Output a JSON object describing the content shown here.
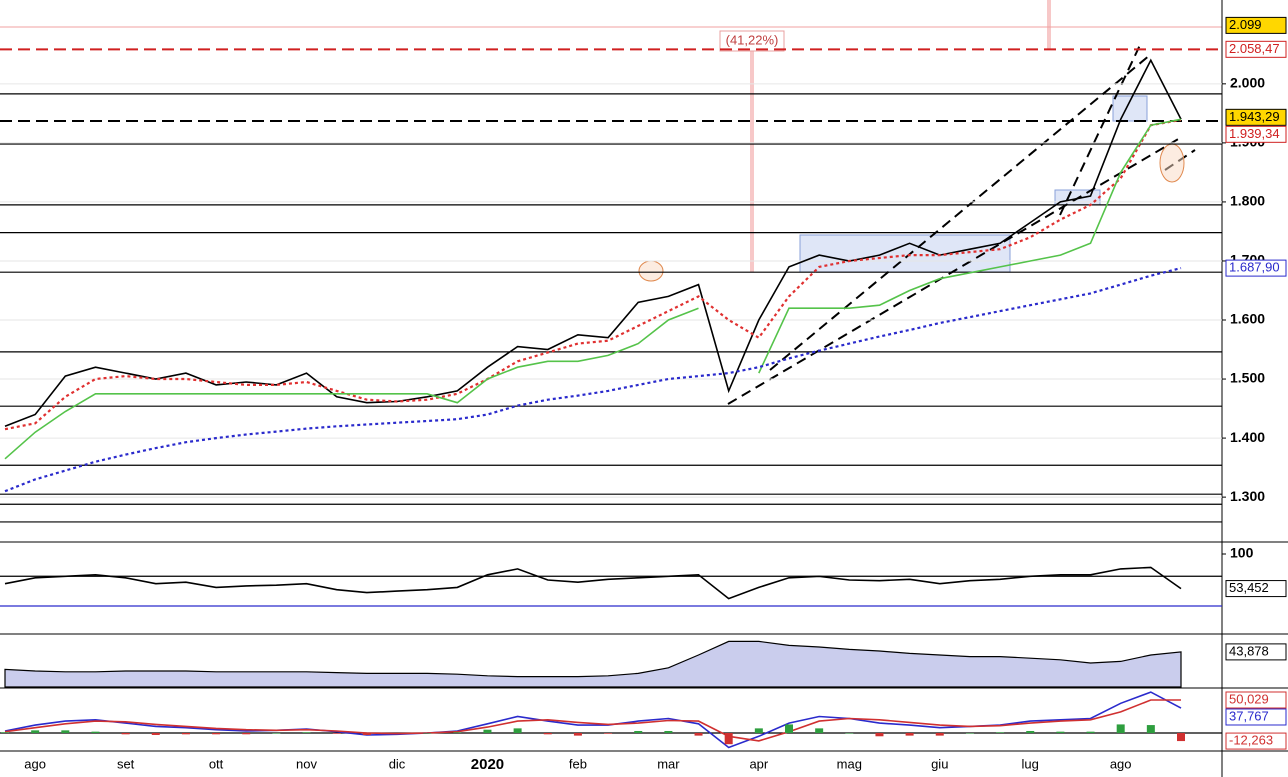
{
  "chart_data": [
    {
      "type": "line",
      "categories": [
        null,
        "ago",
        null,
        null,
        "set",
        null,
        null,
        "ott",
        null,
        null,
        "nov",
        null,
        null,
        "dic",
        null,
        null,
        "2020",
        null,
        null,
        "feb",
        null,
        null,
        "mar",
        null,
        null,
        "apr",
        null,
        null,
        "mag",
        null,
        null,
        "giu",
        null,
        null,
        "lug",
        null,
        null,
        "ago",
        null,
        null
      ],
      "ylim": [
        1224,
        2142
      ],
      "yticks": [
        {
          "value": 1300,
          "label": "1.300"
        },
        {
          "value": 1400,
          "label": "1.400"
        },
        {
          "value": 1500,
          "label": "1.500"
        },
        {
          "value": 1600,
          "label": "1.600"
        },
        {
          "value": 1700,
          "label": "1.700"
        },
        {
          "value": 1800,
          "label": "1.800"
        },
        {
          "value": 1900,
          "label": "1.900"
        },
        {
          "value": 2000,
          "label": "2.000"
        }
      ],
      "grid": true,
      "series": [
        {
          "color": "#000000",
          "style": "solid",
          "values": [
            1420,
            1440,
            1505,
            1520,
            1510,
            1500,
            1510,
            1490,
            1495,
            1490,
            1510,
            1470,
            1460,
            1462,
            1470,
            1480,
            1520,
            1555,
            1550,
            1575,
            1570,
            1630,
            1640,
            1660,
            1480,
            1600,
            1690,
            1710,
            1700,
            1710,
            1730,
            1710,
            1720,
            1730,
            1765,
            1800,
            1810,
            1940,
            2040,
            1940
          ]
        },
        {
          "color": "#e03030",
          "style": "dotted",
          "values": [
            1415,
            1425,
            1470,
            1500,
            1505,
            1500,
            1500,
            1495,
            1490,
            1490,
            1495,
            1480,
            1465,
            1462,
            1465,
            1475,
            1500,
            1530,
            1545,
            1560,
            1565,
            1590,
            1615,
            1640,
            1600,
            1570,
            1640,
            1690,
            1700,
            1705,
            1710,
            1710,
            1715,
            1720,
            1740,
            1770,
            1795,
            1840,
            1930,
            1939
          ]
        },
        {
          "color": "#55c34a",
          "style": "solid",
          "values": [
            1365,
            1410,
            1445,
            1475,
            1475,
            1475,
            1475,
            1475,
            1475,
            1475,
            1475,
            1475,
            1475,
            1475,
            1475,
            1460,
            1500,
            1520,
            1530,
            1530,
            1540,
            1560,
            1600,
            1620,
            null,
            1510,
            1620,
            1620,
            1620,
            1625,
            1650,
            1670,
            1680,
            1690,
            1700,
            1710,
            1730,
            1850,
            1930,
            1940
          ]
        },
        {
          "color": "#2a2acc",
          "style": "dotted",
          "values": [
            1310,
            1330,
            1345,
            1360,
            1372,
            1383,
            1393,
            1400,
            1406,
            1411,
            1416,
            1420,
            1423,
            1426,
            1429,
            1432,
            1440,
            1455,
            1465,
            1472,
            1480,
            1490,
            1500,
            1505,
            1510,
            1520,
            1535,
            1548,
            1560,
            1572,
            1583,
            1595,
            1605,
            1615,
            1625,
            1635,
            1645,
            1660,
            1675,
            1687.9
          ]
        }
      ],
      "levels": [
        {
          "value": 2058.47,
          "color": "#d02020",
          "style": "dashed"
        },
        {
          "value": 1983,
          "color": "#000000",
          "style": "solid"
        },
        {
          "value": 1937,
          "color": "#000000",
          "style": "dashed"
        },
        {
          "value": 1898,
          "color": "#000000",
          "style": "solid"
        },
        {
          "value": 1795,
          "color": "#000000",
          "style": "solid"
        },
        {
          "value": 1748,
          "color": "#000000",
          "style": "solid"
        },
        {
          "value": 1681,
          "color": "#000000",
          "style": "solid"
        },
        {
          "value": 1546,
          "color": "#000000",
          "style": "solid"
        },
        {
          "value": 1454,
          "color": "#000000",
          "style": "solid"
        },
        {
          "value": 1354,
          "color": "#000000",
          "style": "solid"
        },
        {
          "value": 1305,
          "color": "#000000",
          "style": "solid"
        },
        {
          "value": 1288,
          "color": "#000000",
          "style": "solid"
        },
        {
          "value": 1258,
          "color": "#000000",
          "style": "solid"
        }
      ],
      "markers": [
        {
          "value": 2099,
          "label": "2.099",
          "color": "#000000",
          "background": "#ffd700"
        },
        {
          "value": 2058.47,
          "label": "2.058,47",
          "color": "#d02020",
          "background": "#ffffff"
        },
        {
          "value": 1943.29,
          "label": "1.943,29",
          "color": "#000000",
          "background": "#ffd700"
        },
        {
          "value": 1939.34,
          "label": "1.939,34",
          "color": "#d02020",
          "background": "#ffffff"
        },
        {
          "value": 1687.9,
          "label": "1.687,90",
          "color": "#2a2acc",
          "background": "#ffffff"
        }
      ],
      "annotation": "(41,22%)"
    },
    {
      "type": "line",
      "ylim": [
        -5,
        114.8
      ],
      "yticks": [
        100
      ],
      "series": [
        {
          "color": "#000000",
          "style": "solid",
          "values": [
            60,
            68,
            70,
            72,
            68,
            60,
            62,
            55,
            57,
            58,
            60,
            52,
            48,
            50,
            52,
            55,
            72,
            80,
            65,
            62,
            66,
            68,
            70,
            72,
            40,
            55,
            68,
            70,
            65,
            64,
            66,
            60,
            64,
            66,
            70,
            72,
            72,
            80,
            82,
            53.452
          ]
        }
      ],
      "levels": [
        {
          "value": 70,
          "color": "#000000",
          "style": "solid"
        },
        {
          "value": 30,
          "color": "#2a2acc",
          "style": "solid"
        }
      ],
      "markers": [
        {
          "value": 53.452,
          "label": "53,452",
          "color": "#000000",
          "background": "#ffffff"
        }
      ]
    },
    {
      "type": "area",
      "ylim": [
        0,
        65
      ],
      "series": [
        {
          "color": "#000000",
          "fill": "#b4b8e6",
          "values": [
            22,
            20,
            19,
            19,
            20,
            20,
            20,
            19,
            19,
            19,
            19,
            18,
            17,
            17,
            17,
            16,
            14,
            13,
            13,
            13,
            14,
            17,
            24,
            40,
            57,
            57,
            52,
            50,
            47,
            45,
            42,
            40,
            38,
            38,
            36,
            34,
            30,
            32,
            40,
            43.878
          ]
        }
      ],
      "markers": [
        {
          "value": 43.878,
          "label": "43,878",
          "color": "#000000",
          "background": "#ffffff"
        }
      ]
    },
    {
      "type": "line",
      "ylim": [
        -25.8,
        66.7
      ],
      "series": [
        {
          "color": "#2a2acc",
          "style": "solid",
          "values": [
            3,
            12,
            18,
            20,
            15,
            10,
            8,
            5,
            3,
            4,
            6,
            2,
            -3,
            -2,
            0,
            3,
            14,
            25,
            18,
            12,
            12,
            18,
            22,
            14,
            -22,
            -5,
            15,
            25,
            22,
            15,
            12,
            8,
            10,
            12,
            18,
            20,
            22,
            45,
            62,
            37.767
          ]
        },
        {
          "color": "#d03030",
          "style": "solid",
          "values": [
            2,
            8,
            14,
            18,
            17,
            13,
            10,
            7,
            5,
            4,
            5,
            3,
            0,
            -1,
            0,
            2,
            9,
            18,
            20,
            16,
            13,
            15,
            19,
            18,
            -5,
            -12,
            2,
            18,
            22,
            20,
            16,
            12,
            10,
            11,
            15,
            18,
            20,
            32,
            50,
            50.029
          ]
        },
        {
          "kind": "bar",
          "color": "#2e9e3e",
          "negative_color": "#d03030",
          "values": [
            1,
            4,
            4,
            2,
            -2,
            -3,
            -2,
            -2,
            -2,
            0,
            1,
            -1,
            -3,
            -1,
            0,
            1,
            5,
            7,
            -2,
            -4,
            -1,
            3,
            3,
            -4,
            -17,
            7,
            13,
            7,
            0,
            -5,
            -4,
            -4,
            0,
            1,
            3,
            2,
            2,
            13,
            12,
            -12.263
          ]
        }
      ],
      "levels": [
        {
          "value": 0,
          "color": "#000000",
          "style": "solid"
        }
      ],
      "markers": [
        {
          "value": 50.029,
          "label": "50,029",
          "color": "#d03030",
          "background": "#ffffff"
        },
        {
          "value": 37.767,
          "label": "37,767",
          "color": "#2a2acc",
          "background": "#ffffff"
        },
        {
          "value": -12.263,
          "label": "-12,263",
          "color": "#d03030",
          "background": "#ffffff"
        }
      ]
    }
  ]
}
